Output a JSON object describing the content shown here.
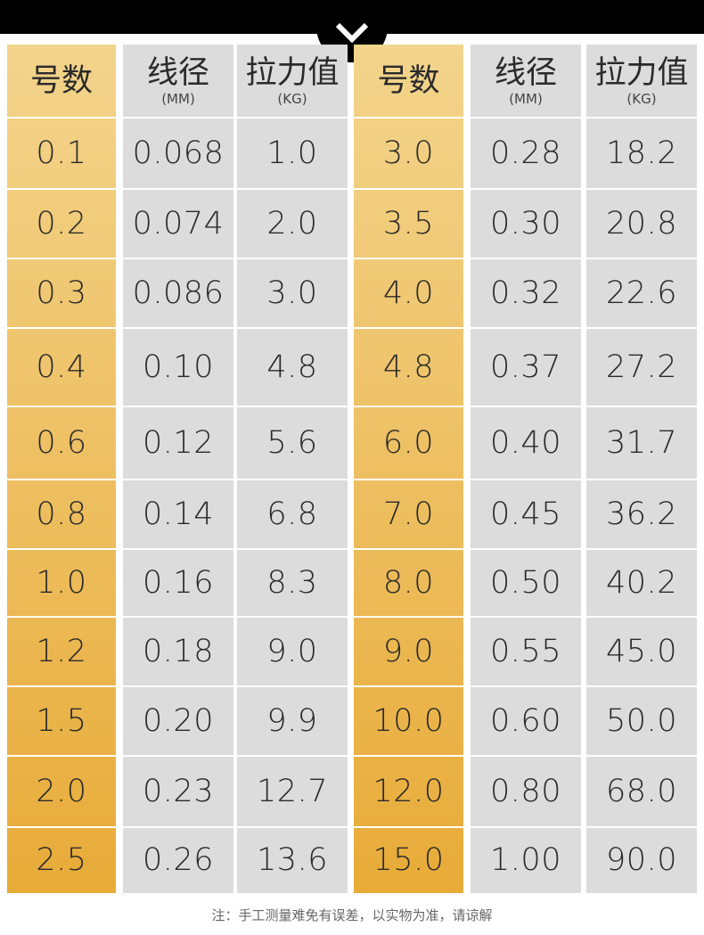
{
  "table": {
    "header": [
      {
        "title": "号数"
      },
      {
        "title": "线径",
        "unit": "(MM)"
      },
      {
        "title": "拉力值",
        "unit": "(KG)"
      },
      {
        "title": "号数"
      },
      {
        "title": "线径",
        "unit": "(MM)"
      },
      {
        "title": "拉力值",
        "unit": "(KG)"
      }
    ],
    "rows": [
      [
        "0.1",
        "0.068",
        "1.0",
        "3.0",
        "0.28",
        "18.2"
      ],
      [
        "0.2",
        "0.074",
        "2.0",
        "3.5",
        "0.30",
        "20.8"
      ],
      [
        "0.3",
        "0.086",
        "3.0",
        "4.0",
        "0.32",
        "22.6"
      ],
      [
        "0.4",
        "0.10",
        "4.8",
        "4.8",
        "0.37",
        "27.2"
      ],
      [
        "0.6",
        "0.12",
        "5.6",
        "6.0",
        "0.40",
        "31.7"
      ],
      [
        "0.8",
        "0.14",
        "6.8",
        "7.0",
        "0.45",
        "36.2"
      ],
      [
        "1.0",
        "0.16",
        "8.3",
        "8.0",
        "0.50",
        "40.2"
      ],
      [
        "1.2",
        "0.18",
        "9.0",
        "9.0",
        "0.55",
        "45.0"
      ],
      [
        "1.5",
        "0.20",
        "9.9",
        "10.0",
        "0.60",
        "50.0"
      ],
      [
        "2.0",
        "0.23",
        "12.7",
        "12.0",
        "0.80",
        "68.0"
      ],
      [
        "2.5",
        "0.26",
        "13.6",
        "15.0",
        "1.00",
        "90.0"
      ]
    ]
  },
  "note": "注：手工测量难免有误差，以实物为准，请谅解"
}
